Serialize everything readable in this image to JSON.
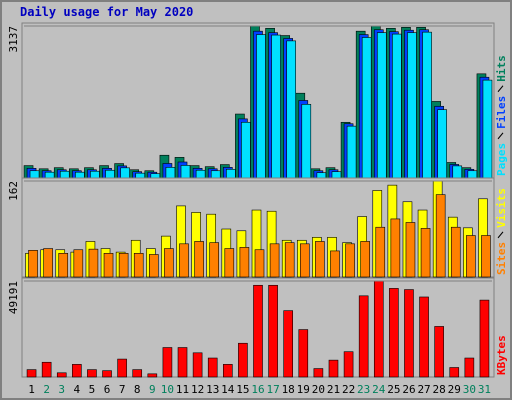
{
  "chart_data": [
    {
      "type": "bar",
      "title": "Daily usage for May 2020",
      "categories": [
        "1",
        "2",
        "3",
        "4",
        "5",
        "6",
        "7",
        "8",
        "9",
        "10",
        "11",
        "12",
        "13",
        "14",
        "15",
        "16",
        "17",
        "18",
        "19",
        "20",
        "21",
        "22",
        "23",
        "24",
        "25",
        "26",
        "27",
        "28",
        "29",
        "30",
        "31"
      ],
      "category_colors": [
        "#000000",
        "#00805c",
        "#00805c",
        "#000000",
        "#000000",
        "#000000",
        "#000000",
        "#000000",
        "#00805c",
        "#00805c",
        "#000000",
        "#000000",
        "#000000",
        "#000000",
        "#000000",
        "#00805c",
        "#00805c",
        "#000000",
        "#000000",
        "#000000",
        "#000000",
        "#000000",
        "#00805c",
        "#00805c",
        "#000000",
        "#000000",
        "#000000",
        "#000000",
        "#000000",
        "#00805c",
        "#00805c"
      ],
      "series": [
        {
          "name": "Hits",
          "color": "#00805c",
          "values": [
            256,
            190,
            213,
            190,
            213,
            256,
            298,
            170,
            150,
            470,
            426,
            256,
            234,
            277,
            1320,
            3137,
            3090,
            2940,
            1750,
            190,
            213,
            1150,
            3030,
            3137,
            3090,
            3110,
            3110,
            1580,
            320,
            213,
            2150
          ]
        },
        {
          "name": "Files",
          "color": "#0040ff",
          "values": [
            200,
            150,
            170,
            150,
            170,
            200,
            250,
            130,
            120,
            300,
            330,
            200,
            190,
            220,
            1220,
            3030,
            3000,
            2880,
            1600,
            150,
            170,
            1120,
            2960,
            3060,
            3020,
            3050,
            3060,
            1480,
            280,
            180,
            2080
          ]
        },
        {
          "name": "Pages",
          "color": "#00e0ff",
          "values": [
            150,
            120,
            140,
            120,
            140,
            160,
            210,
            100,
            90,
            220,
            260,
            160,
            150,
            180,
            1150,
            2960,
            2950,
            2830,
            1520,
            110,
            130,
            1070,
            2900,
            3000,
            2970,
            3000,
            3010,
            1410,
            250,
            150,
            2020
          ]
        }
      ],
      "ylim": [
        0,
        3137
      ],
      "yticks": [
        3137
      ]
    },
    {
      "type": "bar",
      "series": [
        {
          "name": "Visits",
          "color": "#ffff00",
          "values": [
            40,
            46,
            46,
            42,
            60,
            48,
            42,
            62,
            48,
            69,
            120,
            109,
            106,
            81,
            78,
            113,
            111,
            62,
            62,
            67,
            67,
            58,
            102,
            146,
            155,
            127,
            113,
            162,
            101,
            83,
            132
          ]
        },
        {
          "name": "Sites",
          "color": "#ff8000",
          "values": [
            45,
            48,
            40,
            46,
            47,
            40,
            40,
            40,
            38,
            48,
            56,
            60,
            58,
            48,
            50,
            46,
            56,
            58,
            56,
            60,
            44,
            56,
            60,
            84,
            98,
            92,
            82,
            139,
            84,
            70,
            70
          ]
        }
      ],
      "ylim": [
        0,
        162
      ],
      "yticks": [
        162
      ]
    },
    {
      "type": "bar",
      "series": [
        {
          "name": "KBytes",
          "color": "#ff0000",
          "values": [
            3780,
            7560,
            2160,
            6480,
            3780,
            3240,
            9180,
            3780,
            1620,
            15100,
            15100,
            12400,
            9720,
            6480,
            17300,
            47000,
            47000,
            34000,
            24300,
            4320,
            8640,
            12960,
            41600,
            49191,
            45400,
            44800,
            41000,
            25900,
            4860,
            9720,
            39400
          ]
        }
      ],
      "ylim": [
        0,
        49191
      ],
      "yticks": [
        49191
      ]
    }
  ]
}
